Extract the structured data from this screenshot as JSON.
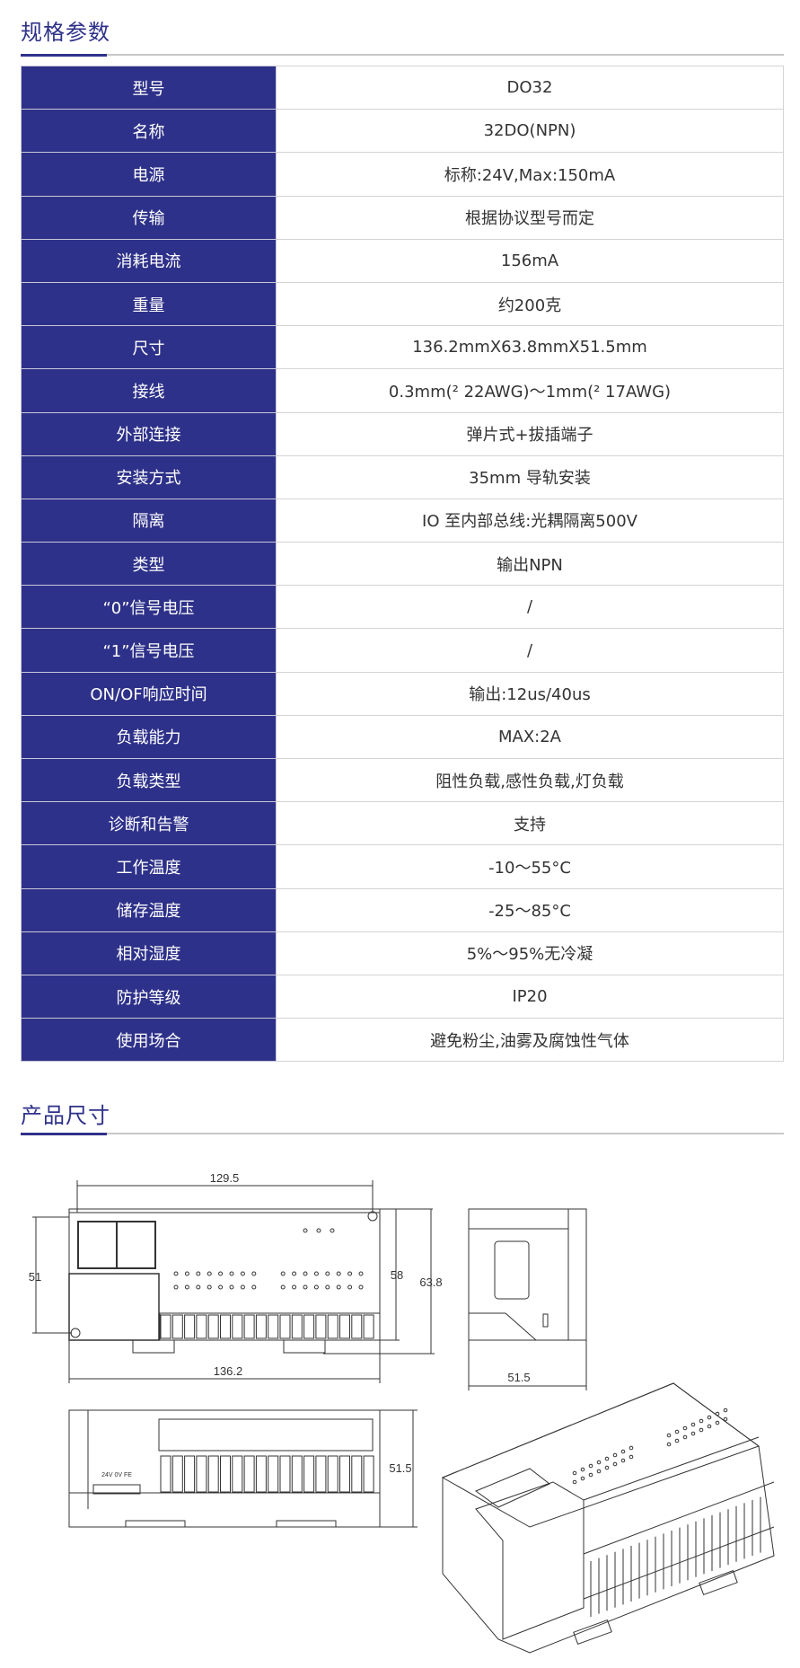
{
  "spec_section": {
    "title": "规格参数"
  },
  "specs": [
    {
      "label": "型号",
      "value": "DO32"
    },
    {
      "label": "名称",
      "value": "32DO(NPN)"
    },
    {
      "label": "电源",
      "value": "标称:24V,Max:150mA"
    },
    {
      "label": "传输",
      "value": "根据协议型号而定"
    },
    {
      "label": "消耗电流",
      "value": "156mA"
    },
    {
      "label": "重量",
      "value": "约200克"
    },
    {
      "label": "尺寸",
      "value": "136.2mmX63.8mmX51.5mm"
    },
    {
      "label": "接线",
      "value": "0.3mm(² 22AWG)～1mm(² 17AWG)"
    },
    {
      "label": "外部连接",
      "value": "弹片式+拔插端子"
    },
    {
      "label": "安装方式",
      "value": "35mm 导轨安装"
    },
    {
      "label": "隔离",
      "value": "IO 至内部总线:光耦隔离500V"
    },
    {
      "label": "类型",
      "value": "输出NPN"
    },
    {
      "label": "“0”信号电压",
      "value": "/"
    },
    {
      "label": "“1”信号电压",
      "value": "/"
    },
    {
      "label": "ON/OF响应时间",
      "value": "输出:12us/40us"
    },
    {
      "label": "负载能力",
      "value": "MAX:2A"
    },
    {
      "label": "负载类型",
      "value": "阻性负载,感性负载,灯负载"
    },
    {
      "label": "诊断和告警",
      "value": "支持"
    },
    {
      "label": "工作温度",
      "value": "-10～55°C"
    },
    {
      "label": "储存温度",
      "value": "-25～85°C"
    },
    {
      "label": "相对湿度",
      "value": "5%～95%无冷凝"
    },
    {
      "label": "防护等级",
      "value": "IP20"
    },
    {
      "label": "使用场合",
      "value": "避免粉尘,油雾及腐蚀性气体"
    }
  ],
  "dimension_section": {
    "title": "产品尺寸",
    "labels": {
      "top_width": "129.5",
      "overall_width": "136.2",
      "left_height": "51",
      "inner_height": "58",
      "overall_height": "63.8",
      "side_depth": "51.5",
      "bottom_depth": "51.5",
      "terminal_marking": "24V 0V FE"
    }
  },
  "colors": {
    "accent": "#2e3189",
    "line": "#c8c8c8"
  }
}
